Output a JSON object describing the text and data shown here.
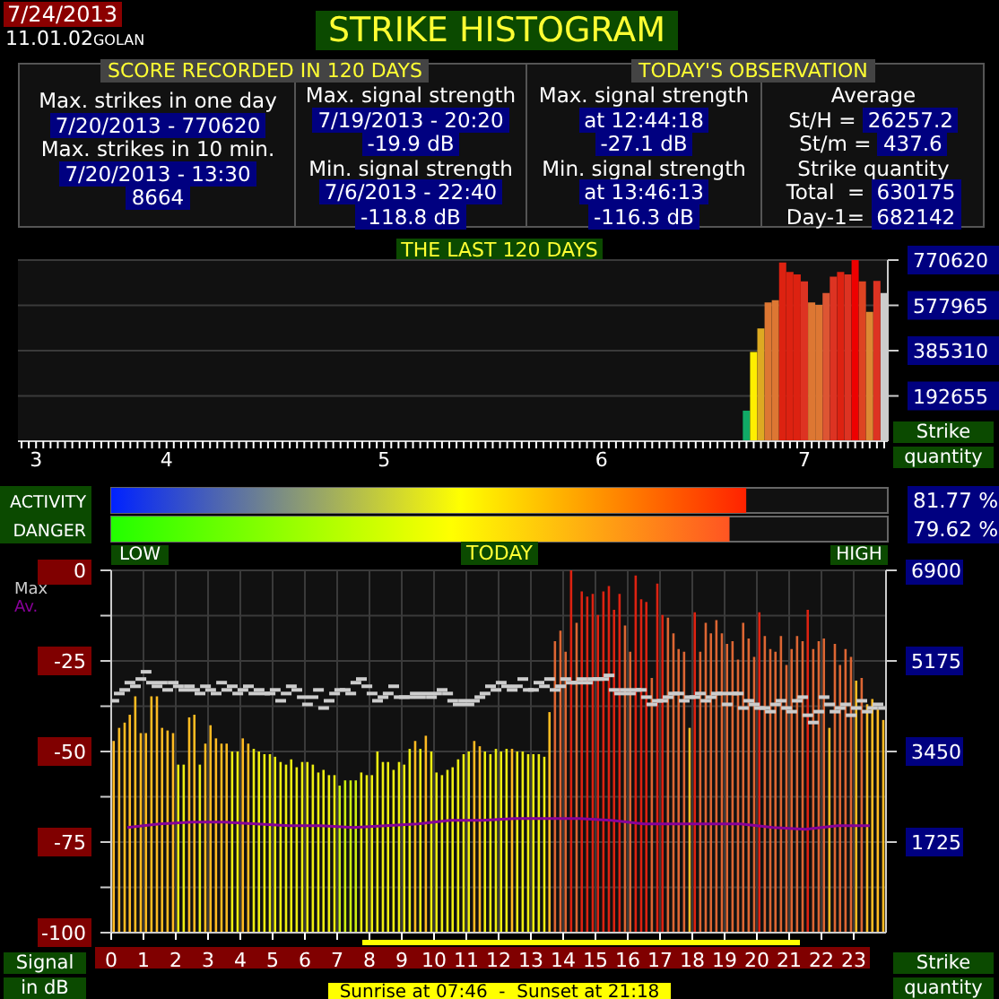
{
  "chart_data": [
    {
      "type": "other",
      "title": "STRIKE HISTOGRAM",
      "annotations": [
        "7/24/2013",
        "11.01.02",
        "GOLAN",
        "SCORE RECORDED IN 120 DAYS",
        "TODAY'S OBSERVATION",
        "Max. strikes in one day",
        "7/20/2013 - 770620",
        "Max. strikes in 10 min.",
        "7/20/2013 - 13:30",
        "8664",
        "Max. signal strength",
        "7/19/2013 - 20:20",
        "-19.9 dB",
        "Min. signal strength",
        "7/6/2013 - 22:40",
        "-118.8 dB",
        "Max. signal strength",
        "at 12:44:18",
        "-27.1 dB",
        "Min. signal strength",
        "at 13:46:13",
        "-116.3 dB",
        "Average",
        "St/H =",
        "26257.2",
        "St/m =",
        "437.6",
        "Strike quantity",
        "Total  =",
        "630175",
        "Day-1=",
        "682142"
      ]
    },
    {
      "type": "bar",
      "title": "THE LAST 120 DAYS",
      "y2label": "Strike quantity",
      "grid": "y",
      "y2lim": [
        0,
        770620
      ],
      "y2ticks": [
        192655,
        385310,
        577965,
        770620
      ],
      "categories": [
        null,
        null,
        "3",
        null,
        null,
        null,
        null,
        null,
        null,
        null,
        null,
        null,
        null,
        null,
        null,
        null,
        null,
        null,
        null,
        null,
        "4",
        null,
        null,
        null,
        null,
        null,
        null,
        null,
        null,
        null,
        null,
        null,
        null,
        null,
        null,
        null,
        null,
        null,
        null,
        null,
        null,
        null,
        null,
        null,
        null,
        null,
        null,
        null,
        null,
        null,
        "5",
        null,
        null,
        null,
        null,
        null,
        null,
        null,
        null,
        null,
        null,
        null,
        null,
        null,
        null,
        null,
        null,
        null,
        null,
        null,
        null,
        null,
        null,
        null,
        null,
        null,
        null,
        null,
        null,
        null,
        "6",
        null,
        null,
        null,
        null,
        null,
        null,
        null,
        null,
        null,
        null,
        null,
        null,
        null,
        null,
        null,
        null,
        null,
        null,
        null,
        null,
        null,
        null,
        null,
        null,
        null,
        null,
        null,
        "7",
        null,
        null,
        null,
        null,
        null,
        null,
        null,
        null,
        null,
        null,
        null
      ],
      "series": [
        {
          "axis": "y2",
          "values": [
            null,
            null,
            null,
            null,
            null,
            null,
            null,
            null,
            null,
            null,
            null,
            null,
            null,
            null,
            null,
            null,
            null,
            null,
            null,
            null,
            null,
            null,
            null,
            null,
            null,
            null,
            null,
            null,
            null,
            null,
            null,
            null,
            null,
            null,
            null,
            null,
            null,
            null,
            null,
            null,
            null,
            null,
            null,
            null,
            null,
            null,
            null,
            null,
            null,
            null,
            null,
            null,
            null,
            null,
            null,
            null,
            null,
            null,
            null,
            null,
            null,
            null,
            null,
            null,
            null,
            null,
            null,
            null,
            null,
            null,
            null,
            null,
            null,
            null,
            null,
            null,
            null,
            null,
            null,
            null,
            null,
            null,
            null,
            null,
            null,
            null,
            null,
            null,
            null,
            null,
            null,
            null,
            null,
            null,
            null,
            null,
            null,
            null,
            null,
            null,
            130000,
            380000,
            480000,
            590000,
            600000,
            760000,
            720000,
            710000,
            680000,
            590000,
            580000,
            630000,
            700000,
            720000,
            710000,
            770620,
            680000,
            550000,
            682142,
            630175
          ],
          "colors": [
            null,
            null,
            null,
            null,
            null,
            null,
            null,
            null,
            null,
            null,
            null,
            null,
            null,
            null,
            null,
            null,
            null,
            null,
            null,
            null,
            null,
            null,
            null,
            null,
            null,
            null,
            null,
            null,
            null,
            null,
            null,
            null,
            null,
            null,
            null,
            null,
            null,
            null,
            null,
            null,
            null,
            null,
            null,
            null,
            null,
            null,
            null,
            null,
            null,
            null,
            null,
            null,
            null,
            null,
            null,
            null,
            null,
            null,
            null,
            null,
            null,
            null,
            null,
            null,
            null,
            null,
            null,
            null,
            null,
            null,
            null,
            null,
            null,
            null,
            null,
            null,
            null,
            null,
            null,
            null,
            null,
            null,
            null,
            null,
            null,
            null,
            null,
            null,
            null,
            null,
            null,
            null,
            null,
            null,
            null,
            null,
            null,
            null,
            null,
            null,
            "#11aa66",
            "#ffee00",
            "#ddaa22",
            "#dd7733",
            "#dd7733",
            "#dd2211",
            "#dd2211",
            "#dd2211",
            "#dd3322",
            "#dd7733",
            "#dd7733",
            "#dd5533",
            "#dd3322",
            "#dd2211",
            "#dd3322",
            "#ee0000",
            "#dd4422",
            "#dd8833",
            "#dd3322",
            "#cccccc"
          ]
        }
      ]
    },
    {
      "type": "bar",
      "orientation": "horizontal",
      "categories": [
        "ACTIVITY",
        "DANGER"
      ],
      "values": [
        81.77,
        79.62
      ],
      "xlim": [
        0,
        100
      ],
      "value_labels": [
        "81.77 %",
        "79.62 %"
      ],
      "colors": [
        "#ff2200",
        "#ff5522"
      ],
      "annotations": [
        "LOW",
        "HIGH"
      ],
      "tick_labels": "y"
    },
    {
      "type": "bar",
      "title": "TODAY",
      "ylabel": "Signal in dB",
      "y2label": "Strike quantity",
      "grid": true,
      "legend": "top left",
      "annotations": [
        "Sunrise at 07:46  -  Sunset at 21:18"
      ],
      "xlim": [
        0,
        24
      ],
      "xticks": [
        0,
        1,
        2,
        3,
        4,
        5,
        6,
        7,
        8,
        9,
        10,
        11,
        12,
        13,
        14,
        15,
        16,
        17,
        18,
        19,
        20,
        21,
        22,
        23
      ],
      "ylim": [
        -100,
        0
      ],
      "yticks": [
        0,
        {
          "value": -12.5,
          "label": null
        },
        -25,
        {
          "value": -37.5,
          "label": null
        },
        -50,
        {
          "value": -62.5,
          "label": null
        },
        -75,
        {
          "value": -87.5,
          "label": null
        },
        -100
      ],
      "y2lim": [
        0,
        6900
      ],
      "y2ticks": [
        1725,
        3450,
        5175,
        6900
      ],
      "x": [
        0.08,
        0.25,
        0.42,
        0.58,
        0.75,
        0.92,
        1.08,
        1.25,
        1.42,
        1.58,
        1.75,
        1.92,
        2.08,
        2.25,
        2.42,
        2.58,
        2.75,
        2.92,
        3.08,
        3.25,
        3.42,
        3.58,
        3.75,
        3.92,
        4.08,
        4.25,
        4.42,
        4.58,
        4.75,
        4.92,
        5.08,
        5.25,
        5.42,
        5.58,
        5.75,
        5.92,
        6.08,
        6.25,
        6.42,
        6.58,
        6.75,
        6.92,
        7.08,
        7.25,
        7.42,
        7.58,
        7.75,
        7.92,
        8.08,
        8.25,
        8.42,
        8.58,
        8.75,
        8.92,
        9.08,
        9.25,
        9.42,
        9.58,
        9.75,
        9.92,
        10.08,
        10.25,
        10.42,
        10.58,
        10.75,
        10.92,
        11.08,
        11.25,
        11.42,
        11.58,
        11.75,
        11.92,
        12.08,
        12.25,
        12.42,
        12.58,
        12.75,
        12.92,
        13.08,
        13.25,
        13.42,
        13.58,
        13.75,
        13.92,
        14.08,
        14.25,
        14.42,
        14.58,
        14.75,
        14.92,
        15.08,
        15.25,
        15.42,
        15.58,
        15.75,
        15.92,
        16.08,
        16.25,
        16.42,
        16.58,
        16.75,
        16.92,
        17.08,
        17.25,
        17.42,
        17.58,
        17.75,
        17.92,
        18.08,
        18.25,
        18.42,
        18.58,
        18.75,
        18.92,
        19.08,
        19.25,
        19.42,
        19.58,
        19.75,
        19.92,
        20.08,
        20.25,
        20.42,
        20.58,
        20.75,
        20.92,
        21.08,
        21.25,
        21.42,
        21.58,
        21.75,
        21.92,
        22.08,
        22.25,
        22.42,
        22.58,
        22.75,
        22.92,
        23.08,
        23.25,
        23.42,
        23.58,
        23.75,
        23.92
      ],
      "series": [
        {
          "type": "bar",
          "axis": "y2",
          "values": [
            3650,
            3900,
            4000,
            4150,
            4500,
            3800,
            3800,
            4500,
            4500,
            3900,
            3850,
            3800,
            3200,
            3200,
            4100,
            4150,
            3200,
            3600,
            3950,
            3700,
            3600,
            3600,
            3450,
            3450,
            3700,
            3600,
            3500,
            3450,
            3400,
            3400,
            3350,
            3250,
            3200,
            3300,
            3150,
            3250,
            3250,
            3200,
            3050,
            3100,
            3000,
            3000,
            2800,
            2900,
            2900,
            2900,
            3050,
            3000,
            3000,
            3450,
            3250,
            3250,
            3100,
            3250,
            3200,
            3500,
            3650,
            3500,
            3750,
            3450,
            3050,
            3000,
            3100,
            3150,
            3300,
            3400,
            3450,
            3650,
            3550,
            3450,
            3400,
            3500,
            3450,
            3500,
            3500,
            3450,
            3450,
            3400,
            3400,
            3400,
            3350,
            4200,
            5550,
            5750,
            5350,
            6900,
            5900,
            6500,
            6400,
            6450,
            6050,
            6500,
            6600,
            6150,
            6450,
            5850,
            5350,
            6800,
            6350,
            6300,
            4850,
            6650,
            6050,
            6000,
            5700,
            5400,
            5350,
            3900,
            6100,
            5350,
            5900,
            5700,
            5950,
            5700,
            5500,
            5550,
            5200,
            5900,
            5600,
            5250,
            6100,
            5650,
            5400,
            5350,
            5650,
            5100,
            5400,
            5650,
            5550,
            6150,
            5400,
            5550,
            5600,
            3900,
            5500,
            5100,
            5400,
            5250,
            4800,
            4850,
            4350,
            4450,
            4250,
            4050
          ],
          "colors": [
            "#ffbb22",
            "#ffbb22",
            "#ffbb22",
            "#ffbb22",
            "#ffbb22",
            "#ffbb22",
            "#ffbb22",
            "#ffbb22",
            "#ffbb22",
            "#ffbb22",
            "#ffbb22",
            "#ffbb22",
            "#eeee11",
            "#eeee11",
            "#ffbb22",
            "#ffbb22",
            "#eeee11",
            "#ffbb22",
            "#ffbb22",
            "#ffbb22",
            "#ffbb22",
            "#ffbb22",
            "#eeee11",
            "#eeee11",
            "#ffbb22",
            "#ffbb22",
            "#eeee11",
            "#eeee11",
            "#eeee11",
            "#eeee11",
            "#eeee11",
            "#eeee11",
            "#eeee11",
            "#eeee11",
            "#eeee11",
            "#eeee11",
            "#eeee11",
            "#eeee11",
            "#eeee11",
            "#eeee11",
            "#eeee11",
            "#eeee11",
            "#ccee11",
            "#ccee11",
            "#ccee11",
            "#ccee11",
            "#eeee11",
            "#eeee11",
            "#eeee11",
            "#eeee11",
            "#eeee11",
            "#eeee11",
            "#eeee11",
            "#eeee11",
            "#eeee11",
            "#eeee11",
            "#ffbb22",
            "#eeee11",
            "#ffbb22",
            "#eeee11",
            "#eeee11",
            "#eeee11",
            "#eeee11",
            "#eeee11",
            "#eeee11",
            "#eeee11",
            "#eeee11",
            "#ffbb22",
            "#ffbb22",
            "#eeee11",
            "#eeee11",
            "#eeee11",
            "#eeee11",
            "#eeee11",
            "#ffbb22",
            "#eeee11",
            "#eeee11",
            "#eeee11",
            "#eeee11",
            "#eeee11",
            "#eeee11",
            "#ffbb22",
            "#dd6633",
            "#dd6633",
            "#dd6633",
            "#dd2211",
            "#dd6633",
            "#dd2211",
            "#dd2211",
            "#dd2211",
            "#dd2211",
            "#dd2211",
            "#dd2211",
            "#dd2211",
            "#dd2211",
            "#dd6633",
            "#dd6633",
            "#dd2211",
            "#dd2211",
            "#dd2211",
            "#dd6633",
            "#dd2211",
            "#dd2211",
            "#dd6633",
            "#dd6633",
            "#dd6633",
            "#dd6633",
            "#ffbb22",
            "#dd2211",
            "#dd6633",
            "#dd6633",
            "#dd6633",
            "#dd6633",
            "#dd6633",
            "#dd6633",
            "#dd6633",
            "#dd6633",
            "#dd6633",
            "#dd6633",
            "#dd6633",
            "#dd2211",
            "#dd6633",
            "#dd6633",
            "#dd6633",
            "#dd6633",
            "#dd6633",
            "#dd6633",
            "#dd6633",
            "#dd6633",
            "#dd2211",
            "#dd6633",
            "#dd6633",
            "#dd6633",
            "#ffbb22",
            "#dd6633",
            "#dd6633",
            "#dd6633",
            "#dd6633",
            "#ffbb22",
            "#dd6633",
            "#ffbb22",
            "#ffbb22",
            "#ffbb22",
            "#ffbb22"
          ]
        },
        {
          "type": "scatter",
          "name": "Max",
          "axis": "y",
          "color": "#cccccc",
          "marker": "square",
          "values": [
            -36,
            -34,
            -33,
            -31,
            -32,
            -30,
            -28,
            -31,
            -32,
            -31,
            -33,
            -31,
            -32,
            -33,
            -32,
            -33,
            -34,
            -32,
            -33,
            -34,
            -31,
            -33,
            -32,
            -34,
            -33,
            -32,
            -34,
            -33,
            -34,
            -34,
            -33,
            -36,
            -34,
            -32,
            -33,
            -35,
            -37,
            -35,
            -33,
            -38,
            -36,
            -34,
            -33,
            -33,
            -34,
            -31,
            -30,
            -32,
            -34,
            -36,
            -35,
            -34,
            -32,
            -35,
            -35,
            -35,
            -34,
            -35,
            -34,
            -35,
            -34,
            -33,
            -34,
            -36,
            -37,
            -36,
            -37,
            -36,
            -35,
            -34,
            -32,
            -33,
            -31,
            -32,
            -33,
            -32,
            -30,
            -33,
            -33,
            -31,
            -32,
            -30,
            -33,
            -32,
            -30,
            -31,
            -31,
            -30,
            -31,
            -30,
            -30,
            -30,
            -29,
            -33,
            -34,
            -33,
            -34,
            -33,
            -33,
            -35,
            -37,
            -36,
            -36,
            -35,
            -34,
            -34,
            -36,
            -35,
            -35,
            -34,
            -36,
            -35,
            -34,
            -34,
            -37,
            -34,
            -34,
            -38,
            -36,
            -37,
            -38,
            -38,
            -39,
            -37,
            -36,
            -38,
            -39,
            -36,
            -35,
            -40,
            -42,
            -39,
            -35,
            -37,
            -39,
            -38,
            -37,
            -40,
            -38,
            -36,
            -39,
            -38,
            -37,
            -38
          ]
        },
        {
          "type": "line",
          "name": "Av.",
          "axis": "y",
          "color": "#880099",
          "marker": "none",
          "x": [
            0.5,
            1.5,
            2.5,
            3.5,
            4.5,
            5.5,
            6.5,
            7.5,
            8.5,
            9.5,
            10.5,
            11.5,
            12.5,
            13.5,
            14.5,
            15.5,
            16.5,
            17.5,
            18.5,
            19.5,
            20.5,
            21.5,
            22.5,
            23.5
          ],
          "values": [
            -71,
            -70,
            -69.5,
            -69.5,
            -70,
            -70.5,
            -70.5,
            -71,
            -70.5,
            -70,
            -69,
            -69,
            -68.5,
            -68.5,
            -68.5,
            -69,
            -70,
            -70,
            -70,
            -70,
            -71,
            -71.5,
            -70.5,
            -70.5
          ]
        }
      ]
    }
  ]
}
